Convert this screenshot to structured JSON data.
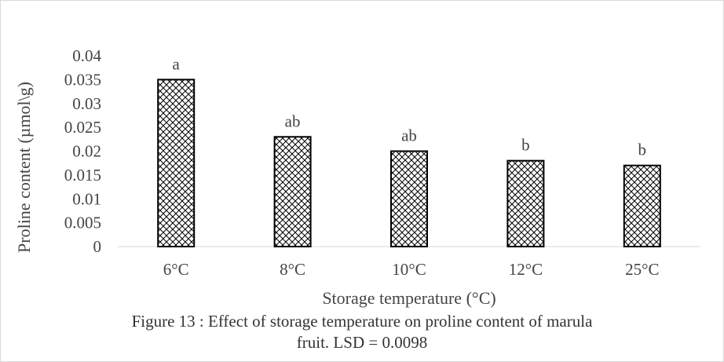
{
  "chart_data": {
    "type": "bar",
    "categories": [
      "6°C",
      "8°C",
      "10°C",
      "12°C",
      "25°C"
    ],
    "values": [
      0.035,
      0.023,
      0.02,
      0.018,
      0.017
    ],
    "bar_labels": [
      "a",
      "ab",
      "ab",
      "b",
      "b"
    ],
    "xlabel": "Storage temperature (°C)",
    "ylabel": "Proline content (µmol\\g)",
    "ylim": [
      0,
      0.04
    ],
    "yticks": [
      "0",
      "0.005",
      "0.01",
      "0.015",
      "0.02",
      "0.025",
      "0.03",
      "0.035",
      "0.04"
    ],
    "grid": false,
    "legend": "none",
    "bar_fill": "crosshatch",
    "colors": {
      "bar_stroke": "#000000",
      "axis": "#d9d9d9",
      "text": "#444444"
    }
  },
  "caption": {
    "line1": "Figure 13 : Effect of storage temperature on proline content of marula",
    "line2": "fruit. LSD = 0.0098"
  }
}
